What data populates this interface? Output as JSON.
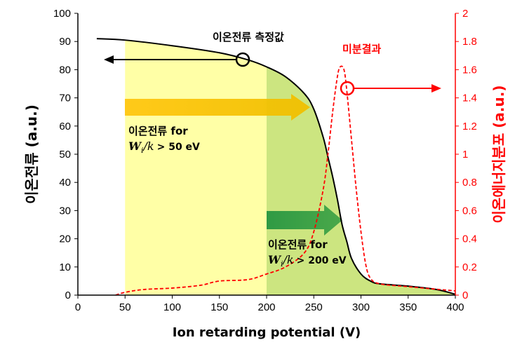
{
  "chart_data": {
    "type": "line",
    "xlabel": "Ion retarding potential (V)",
    "ylabel": "이온전류 (a.u.)",
    "y2label": "이온에너지분포 (a.u.)",
    "xlim": [
      0,
      400
    ],
    "ylim": [
      0,
      100
    ],
    "y2lim": [
      0,
      2
    ],
    "x_ticks": [
      "0",
      "50",
      "100",
      "150",
      "200",
      "250",
      "300",
      "350",
      "400"
    ],
    "y_ticks": [
      "0",
      "10",
      "20",
      "30",
      "40",
      "50",
      "60",
      "70",
      "80",
      "90",
      "100"
    ],
    "y2_ticks": [
      "0",
      "0.2",
      "0.4",
      "0.6",
      "0.8",
      "1",
      "1.2",
      "1.4",
      "1.6",
      "1.8",
      "2"
    ],
    "series": [
      {
        "name": "이온전류 측정값",
        "axis": "left",
        "color": "#000000",
        "style": "solid",
        "x": [
          20,
          50,
          100,
          150,
          180,
          200,
          220,
          240,
          250,
          260,
          265,
          270,
          275,
          280,
          285,
          290,
          300,
          310,
          320,
          350,
          380,
          400
        ],
        "y": [
          91,
          90.5,
          88.5,
          86,
          83.5,
          81,
          77.5,
          71.5,
          66,
          56,
          49,
          42,
          34,
          25,
          19,
          13,
          7.5,
          5,
          4,
          3.2,
          2,
          0.3
        ]
      },
      {
        "name": "미분결과",
        "axis": "right",
        "color": "#ff0000",
        "style": "dashed",
        "x": [
          40,
          50,
          70,
          100,
          130,
          150,
          180,
          200,
          220,
          240,
          250,
          260,
          265,
          270,
          275,
          278,
          282,
          285,
          290,
          295,
          300,
          305,
          310,
          320,
          350,
          400
        ],
        "y": [
          0,
          0.02,
          0.04,
          0.05,
          0.07,
          0.1,
          0.11,
          0.15,
          0.2,
          0.3,
          0.45,
          0.75,
          1.0,
          1.3,
          1.55,
          1.62,
          1.6,
          1.45,
          1.1,
          0.75,
          0.45,
          0.22,
          0.12,
          0.08,
          0.06,
          0.03
        ]
      }
    ],
    "shaded_regions": [
      {
        "x_from": 50,
        "x_to": 200,
        "color": "#ffffa6",
        "note": "light yellow"
      },
      {
        "x_from": 200,
        "x_to": 400,
        "color": "#cce580",
        "note": "green, under curve"
      }
    ],
    "annotations": {
      "measured_label": "이온전류 측정값",
      "diff_label": "미분결과",
      "region1_label": "이온전류 for",
      "region1_cond": "> 50 eV",
      "region2_label": "이온전류 for",
      "region2_cond": "> 200 eV",
      "cond_var": "W",
      "cond_sub": "i",
      "cond_div": "/k"
    }
  }
}
